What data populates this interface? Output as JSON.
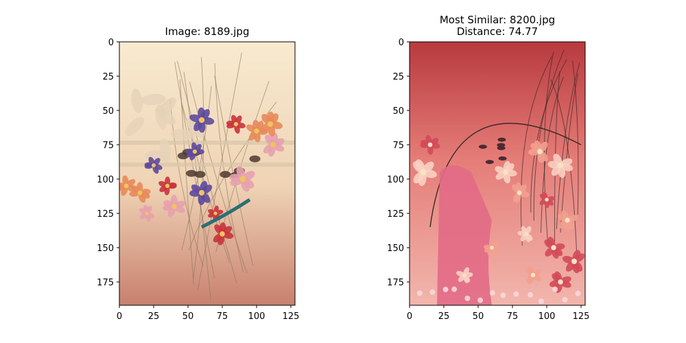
{
  "chart_data": [
    {
      "type": "image",
      "title_lines": [
        "Image: 8189.jpg"
      ],
      "xlim": [
        0,
        128
      ],
      "ylim": [
        192,
        0
      ],
      "xticks": [
        0,
        25,
        50,
        75,
        100,
        125
      ],
      "yticks": [
        0,
        25,
        50,
        75,
        100,
        125,
        150,
        175
      ],
      "grid": false,
      "palette": {
        "base_top": "#f8ead0",
        "base_mid": "#efd3b4",
        "base_bottom": "#c8806e",
        "flower_blue": "#5e4a9c",
        "flower_red": "#c8343c",
        "flower_orange": "#e88a5a",
        "flower_pink": "#e7a1ae",
        "leaf": "#8a7458",
        "dark_leaf": "#4e3a30",
        "teal": "#2c6f76"
      }
    },
    {
      "type": "image",
      "title_lines": [
        "Most Similar: 8200.jpg",
        "Distance: 74.77"
      ],
      "xlim": [
        0,
        128
      ],
      "ylim": [
        192,
        0
      ],
      "xticks": [
        0,
        25,
        50,
        75,
        100,
        125
      ],
      "yticks": [
        0,
        25,
        50,
        75,
        100,
        125,
        150,
        175
      ],
      "grid": false,
      "palette": {
        "base_top": "#b83a3e",
        "base_mid": "#e57d78",
        "base_bottom": "#f2b6ad",
        "flower_pink": "#f2a08f",
        "flower_light": "#f8d0c2",
        "figure": "#e26a86",
        "stem": "#3a2a2a",
        "leaf_dark": "#4b2b31",
        "accent": "#d34a59"
      }
    }
  ]
}
